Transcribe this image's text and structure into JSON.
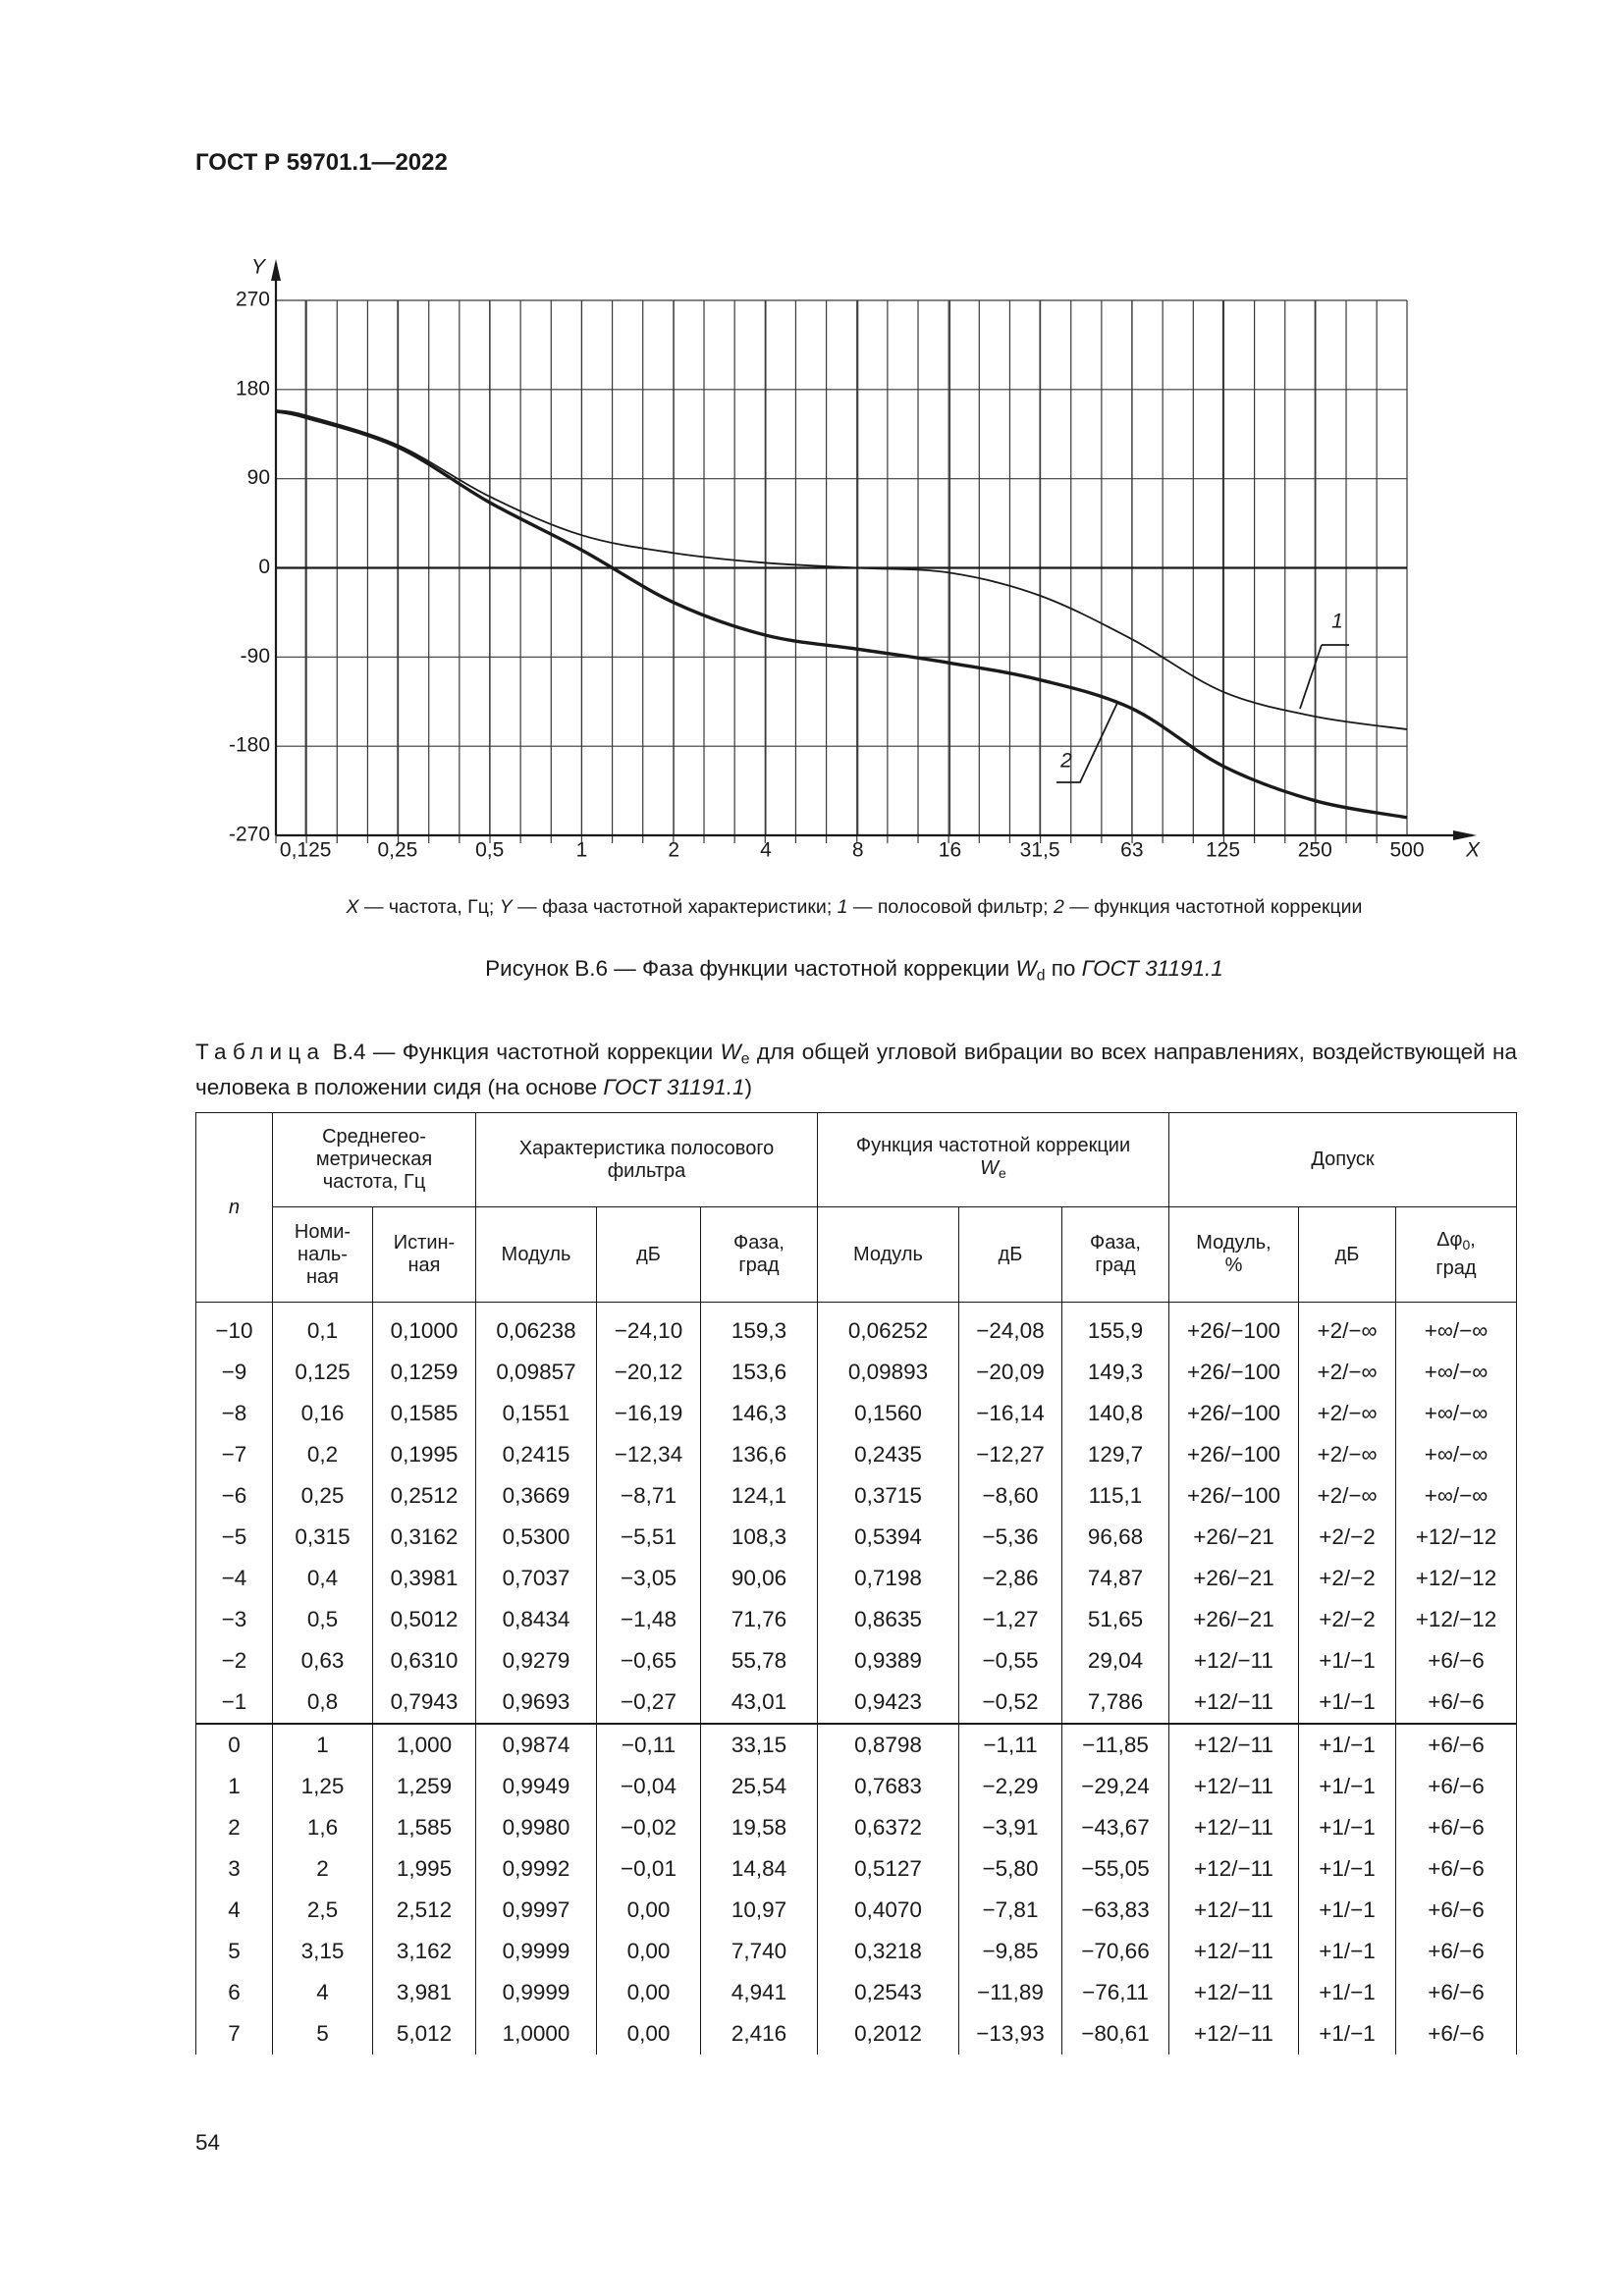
{
  "header": {
    "title": "ГОСТ Р 59701.1—2022"
  },
  "chart_data": {
    "type": "line",
    "x_label": "X",
    "y_label": "Y",
    "xscale": "log",
    "xlim": [
      0.1,
      500
    ],
    "xticks": [
      {
        "value": 0.125,
        "label": "0,125"
      },
      {
        "value": 0.25,
        "label": "0,25"
      },
      {
        "value": 0.5,
        "label": "0,5"
      },
      1,
      2,
      4,
      8,
      16,
      {
        "value": 31.5,
        "label": "31,5"
      },
      63,
      125,
      250,
      500
    ],
    "ylim": [
      -270,
      270
    ],
    "yticks": [
      -270,
      -180,
      -90,
      0,
      90,
      180,
      270
    ],
    "grid": true,
    "x": [
      0.1,
      0.125,
      0.25,
      0.5,
      1,
      2,
      4,
      8,
      16,
      31.5,
      63,
      125,
      250,
      500
    ],
    "series": [
      {
        "name": "полосовой фильтр",
        "label": "1",
        "color": "#1a1a1a",
        "values": [
          159,
          154,
          124,
          72,
          33,
          15,
          5,
          0,
          -5,
          -28,
          -72,
          -125,
          -150,
          -163
        ]
      },
      {
        "name": "функция частотной коррекции",
        "label": "2",
        "color": "#1a1a1a",
        "values": [
          158,
          152,
          122,
          66,
          18,
          -35,
          -68,
          -82,
          -96,
          -113,
          -142,
          -200,
          -235,
          -252
        ]
      }
    ]
  },
  "figure": {
    "legend_parts": [
      {
        "t": "X",
        "i": true
      },
      {
        "t": " — частота, Гц; "
      },
      {
        "t": "Y",
        "i": true
      },
      {
        "t": " — фаза частотной характеристики; "
      }
    ],
    "dash": " — ",
    "semi": "; ",
    "caption_parts": [
      {
        "t": "Рисунок В.6 — Фаза функции частотной коррекции "
      },
      {
        "t": "W",
        "i": true
      },
      {
        "t": "d",
        "sub": true
      },
      {
        "t": " по "
      },
      {
        "t": "ГОСТ 31191.1",
        "i": true
      }
    ]
  },
  "table": {
    "caption_parts": [
      {
        "t": "Таблица",
        "spaced": true
      },
      {
        "t": " В.4 — Функция частотной коррекции "
      },
      {
        "t": "W",
        "i": true
      },
      {
        "t": "e",
        "sub": true
      },
      {
        "t": " для общей угловой вибрации во всех направлениях, воздействующей на человека в положении сидя (на основе "
      },
      {
        "t": "ГОСТ 31191.1",
        "i": true
      },
      {
        "t": ")"
      }
    ],
    "head": {
      "n": "n",
      "freq": "Среднегео-\nметрическая\nчастота, Гц",
      "band": "Характеристика полосового\nфильтра",
      "corr": "Функция частотной коррекции",
      "corr_w": "W",
      "corr_sub": "e",
      "tol": "Допуск",
      "nominal": "Номи-\nналь-\nная",
      "true": "Истин-\nная",
      "mod1": "Модуль",
      "db1": "дБ",
      "ph1": "Фаза,\nград",
      "mod2": "Модуль",
      "db2": "дБ",
      "ph2": "Фаза,\nград",
      "mod_pct": "Модуль,\n%",
      "db3": "дБ",
      "dphi": "Δφ",
      "dphi_sub": "0",
      "dphi_unit": ",\nград"
    },
    "rows": [
      [
        "−10",
        "0,1",
        "0,1000",
        "0,06238",
        "−24,10",
        "159,3",
        "0,06252",
        "−24,08",
        "155,9",
        "+26/−100",
        "+2/−∞",
        "+∞/−∞"
      ],
      [
        "−9",
        "0,125",
        "0,1259",
        "0,09857",
        "−20,12",
        "153,6",
        "0,09893",
        "−20,09",
        "149,3",
        "+26/−100",
        "+2/−∞",
        "+∞/−∞"
      ],
      [
        "−8",
        "0,16",
        "0,1585",
        "0,1551",
        "−16,19",
        "146,3",
        "0,1560",
        "−16,14",
        "140,8",
        "+26/−100",
        "+2/−∞",
        "+∞/−∞"
      ],
      [
        "−7",
        "0,2",
        "0,1995",
        "0,2415",
        "−12,34",
        "136,6",
        "0,2435",
        "−12,27",
        "129,7",
        "+26/−100",
        "+2/−∞",
        "+∞/−∞"
      ],
      [
        "−6",
        "0,25",
        "0,2512",
        "0,3669",
        "−8,71",
        "124,1",
        "0,3715",
        "−8,60",
        "115,1",
        "+26/−100",
        "+2/−∞",
        "+∞/−∞"
      ],
      [
        "−5",
        "0,315",
        "0,3162",
        "0,5300",
        "−5,51",
        "108,3",
        "0,5394",
        "−5,36",
        "96,68",
        "+26/−21",
        "+2/−2",
        "+12/−12"
      ],
      [
        "−4",
        "0,4",
        "0,3981",
        "0,7037",
        "−3,05",
        "90,06",
        "0,7198",
        "−2,86",
        "74,87",
        "+26/−21",
        "+2/−2",
        "+12/−12"
      ],
      [
        "−3",
        "0,5",
        "0,5012",
        "0,8434",
        "−1,48",
        "71,76",
        "0,8635",
        "−1,27",
        "51,65",
        "+26/−21",
        "+2/−2",
        "+12/−12"
      ],
      [
        "−2",
        "0,63",
        "0,6310",
        "0,9279",
        "−0,65",
        "55,78",
        "0,9389",
        "−0,55",
        "29,04",
        "+12/−11",
        "+1/−1",
        "+6/−6"
      ],
      [
        "−1",
        "0,8",
        "0,7943",
        "0,9693",
        "−0,27",
        "43,01",
        "0,9423",
        "−0,52",
        "7,786",
        "+12/−11",
        "+1/−1",
        "+6/−6"
      ],
      [
        "0",
        "1",
        "1,000",
        "0,9874",
        "−0,11",
        "33,15",
        "0,8798",
        "−1,11",
        "−11,85",
        "+12/−11",
        "+1/−1",
        "+6/−6"
      ],
      [
        "1",
        "1,25",
        "1,259",
        "0,9949",
        "−0,04",
        "25,54",
        "0,7683",
        "−2,29",
        "−29,24",
        "+12/−11",
        "+1/−1",
        "+6/−6"
      ],
      [
        "2",
        "1,6",
        "1,585",
        "0,9980",
        "−0,02",
        "19,58",
        "0,6372",
        "−3,91",
        "−43,67",
        "+12/−11",
        "+1/−1",
        "+6/−6"
      ],
      [
        "3",
        "2",
        "1,995",
        "0,9992",
        "−0,01",
        "14,84",
        "0,5127",
        "−5,80",
        "−55,05",
        "+12/−11",
        "+1/−1",
        "+6/−6"
      ],
      [
        "4",
        "2,5",
        "2,512",
        "0,9997",
        "0,00",
        "10,97",
        "0,4070",
        "−7,81",
        "−63,83",
        "+12/−11",
        "+1/−1",
        "+6/−6"
      ],
      [
        "5",
        "3,15",
        "3,162",
        "0,9999",
        "0,00",
        "7,740",
        "0,3218",
        "−9,85",
        "−70,66",
        "+12/−11",
        "+1/−1",
        "+6/−6"
      ],
      [
        "6",
        "4",
        "3,981",
        "0,9999",
        "0,00",
        "4,941",
        "0,2543",
        "−11,89",
        "−76,11",
        "+12/−11",
        "+1/−1",
        "+6/−6"
      ],
      [
        "7",
        "5",
        "5,012",
        "1,0000",
        "0,00",
        "2,416",
        "0,2012",
        "−13,93",
        "−80,61",
        "+12/−11",
        "+1/−1",
        "+6/−6"
      ]
    ]
  },
  "footer": {
    "page_number": "54"
  }
}
